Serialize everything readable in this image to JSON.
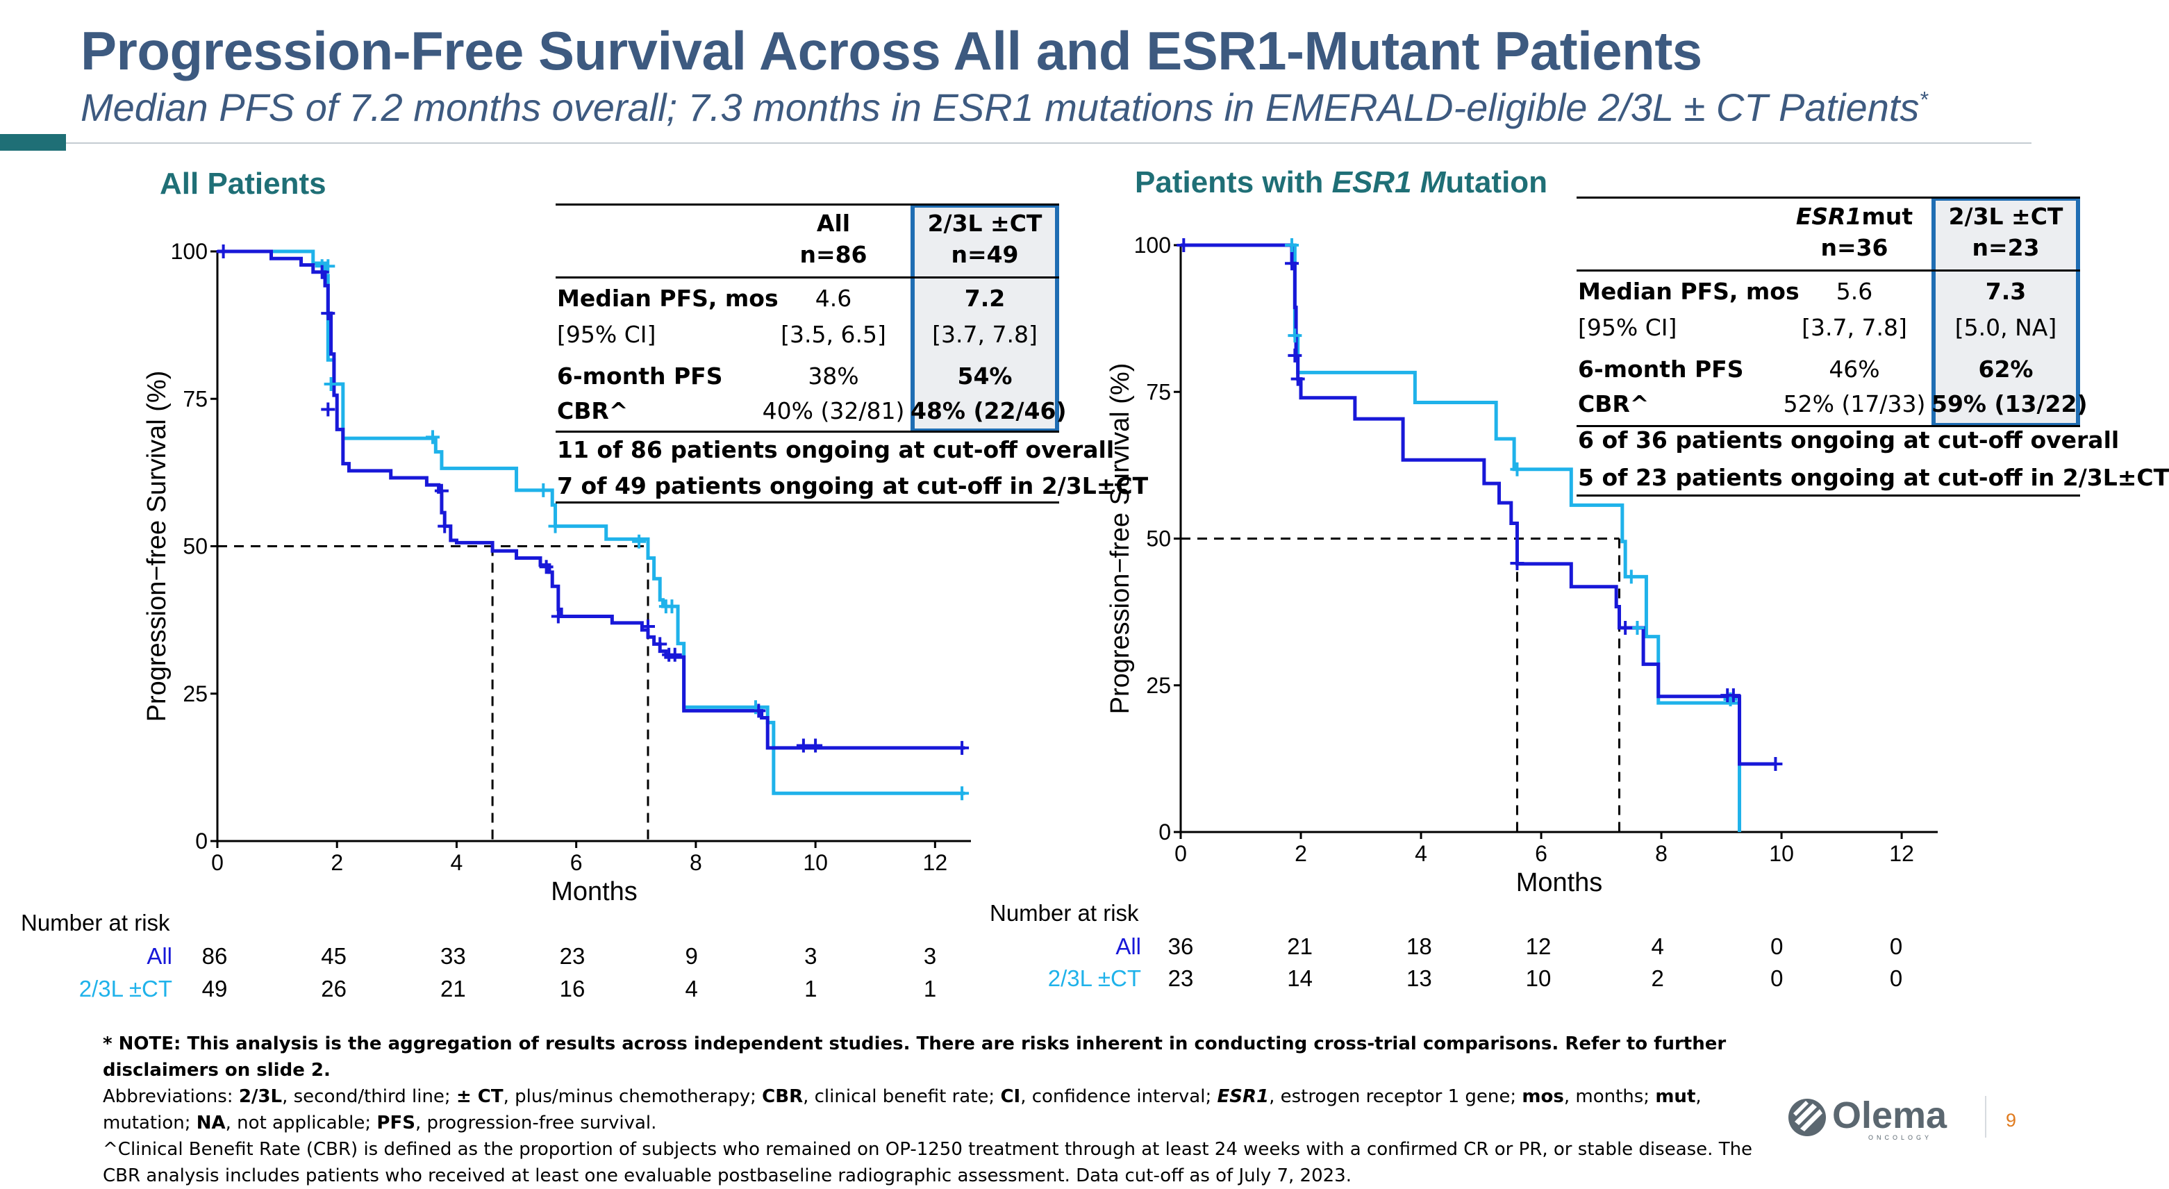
{
  "slide": {
    "title": "Progression-Free Survival Across All and ESR1-Mutant Patients",
    "subtitle": "Median PFS of 7.2 months overall; 7.3 months in ESR1 mutations in EMERALD-eligible 2/3L ± CT Patients",
    "subtitle_mark": "*",
    "page_number": "9",
    "logo_text": "Olema",
    "logo_subtext": "ONCOLOGY"
  },
  "colors": {
    "title": "#3d5a80",
    "accent": "#1f6f76",
    "all_line": "#1818d8",
    "ct_line": "#1fb2ea",
    "highlight_border": "#1f6db3"
  },
  "left_panel": {
    "section_title": "All Patients",
    "table": {
      "headers": [
        {
          "top": "All",
          "bottom": "n=86"
        },
        {
          "top": "2/3L ±CT",
          "bottom": "n=49"
        }
      ],
      "rows": [
        {
          "label": "Median PFS, mos",
          "v1": "4.6",
          "v2": "7.2",
          "bold": true
        },
        {
          "label": "[95% CI]",
          "v1": "[3.5, 6.5]",
          "v2": "[3.7, 7.8]",
          "bold": false
        },
        {
          "label": "6-month PFS",
          "v1": "38%",
          "v2": "54%",
          "bold": true
        },
        {
          "label": "CBR^",
          "v1": "40% (32/81)",
          "v2": "48% (22/46)",
          "bold": true
        }
      ],
      "notes": [
        "11 of 86 patients ongoing at cut-off overall",
        "7 of 49 patients ongoing at cut-off in 2/3L±CT"
      ]
    },
    "risk": {
      "title": "Number at risk",
      "rows": [
        {
          "label": "All",
          "color": "#1818d8",
          "values": [
            "86",
            "45",
            "33",
            "23",
            "9",
            "3",
            "3"
          ]
        },
        {
          "label": "2/3L ±CT",
          "color": "#1fb2ea",
          "values": [
            "49",
            "26",
            "21",
            "16",
            "4",
            "1",
            "1"
          ]
        }
      ]
    }
  },
  "right_panel": {
    "section_title_parts": [
      "Patients with ",
      "ESR1 M",
      "utation"
    ],
    "table": {
      "headers": [
        {
          "top": "ESR1",
          "top_rest": "mut",
          "bottom": "n=36"
        },
        {
          "top": "2/3L ±CT",
          "bottom": "n=23"
        }
      ],
      "rows": [
        {
          "label": "Median PFS, mos",
          "v1": "5.6",
          "v2": "7.3",
          "bold": true
        },
        {
          "label": "[95% CI]",
          "v1": "[3.7, 7.8]",
          "v2": "[5.0, NA]",
          "bold": false
        },
        {
          "label": "6-month PFS",
          "v1": "46%",
          "v2": "62%",
          "bold": true
        },
        {
          "label": "CBR^",
          "v1": "52% (17/33)",
          "v2": "59% (13/22)",
          "bold": true
        }
      ],
      "notes": [
        "6 of 36 patients ongoing at cut-off overall",
        "5 of 23 patients ongoing at cut-off in 2/3L±CT"
      ]
    },
    "risk": {
      "title": "Number at risk",
      "rows": [
        {
          "label": "All",
          "color": "#1818d8",
          "values": [
            "36",
            "21",
            "18",
            "12",
            "4",
            "0",
            "0"
          ]
        },
        {
          "label": "2/3L ±CT",
          "color": "#1fb2ea",
          "values": [
            "23",
            "14",
            "13",
            "10",
            "2",
            "0",
            "0"
          ]
        }
      ]
    }
  },
  "chart_data": [
    {
      "type": "line",
      "subtype": "kaplan-meier step",
      "title": "All Patients",
      "xlabel": "Months",
      "ylabel": "Progression−free Survival (%)",
      "xlim": [
        0,
        12.6
      ],
      "ylim": [
        0,
        100
      ],
      "xticks": [
        0,
        2,
        4,
        6,
        8,
        10,
        12
      ],
      "yticks": [
        0,
        25,
        50,
        75,
        100
      ],
      "grid": false,
      "medians": [
        4.6,
        7.2
      ],
      "reference_y": 50,
      "series": [
        {
          "name": "All",
          "color": "#1818d8",
          "steps": [
            [
              0,
              100
            ],
            [
              0.9,
              98.8
            ],
            [
              1.4,
              97.7
            ],
            [
              1.6,
              96.5
            ],
            [
              1.8,
              94.2
            ],
            [
              1.85,
              89.5
            ],
            [
              1.9,
              82.6
            ],
            [
              1.95,
              75.6
            ],
            [
              2.0,
              69.8
            ],
            [
              2.1,
              64
            ],
            [
              2.2,
              62.8
            ],
            [
              2.9,
              61.6
            ],
            [
              3.5,
              60.4
            ],
            [
              3.7,
              59.2
            ],
            [
              3.75,
              55.7
            ],
            [
              3.8,
              53.4
            ],
            [
              3.9,
              51
            ],
            [
              4.0,
              50.6
            ],
            [
              4.6,
              49.2
            ],
            [
              5.0,
              48
            ],
            [
              5.4,
              46.8
            ],
            [
              5.55,
              45.6
            ],
            [
              5.6,
              43.2
            ],
            [
              5.7,
              39.3
            ],
            [
              5.75,
              38.1
            ],
            [
              6.6,
              37
            ],
            [
              7.1,
              35.8
            ],
            [
              7.2,
              34.6
            ],
            [
              7.3,
              33.4
            ],
            [
              7.4,
              32.2
            ],
            [
              7.5,
              31.2
            ],
            [
              7.8,
              22.1
            ],
            [
              8.8,
              22.1
            ],
            [
              9.1,
              20.9
            ],
            [
              9.2,
              15.8
            ],
            [
              12.5,
              15.8
            ]
          ],
          "censors": [
            [
              0.1,
              100
            ],
            [
              1.75,
              96.5
            ],
            [
              1.85,
              89.5
            ],
            [
              1.85,
              73.2
            ],
            [
              3.75,
              59.4
            ],
            [
              3.8,
              53.4
            ],
            [
              5.5,
              46.5
            ],
            [
              5.7,
              38.1
            ],
            [
              7.2,
              36.4
            ],
            [
              7.4,
              33.4
            ],
            [
              7.55,
              31.6
            ],
            [
              7.65,
              31.6
            ],
            [
              9.05,
              22.1
            ],
            [
              9.8,
              16.2
            ],
            [
              10,
              16.2
            ],
            [
              12.45,
              15.8
            ]
          ]
        },
        {
          "name": "2/3L ±CT",
          "color": "#1fb2ea",
          "steps": [
            [
              0,
              100
            ],
            [
              1.4,
              100
            ],
            [
              1.6,
              98
            ],
            [
              1.8,
              95.9
            ],
            [
              1.85,
              81.6
            ],
            [
              1.95,
              77.5
            ],
            [
              2.1,
              68.3
            ],
            [
              3.6,
              68.3
            ],
            [
              3.65,
              66
            ],
            [
              3.75,
              63.2
            ],
            [
              5.0,
              63.2
            ],
            [
              5.0,
              59.5
            ],
            [
              5.5,
              59.5
            ],
            [
              5.6,
              57
            ],
            [
              5.65,
              53.4
            ],
            [
              6.5,
              53.4
            ],
            [
              6.5,
              51.2
            ],
            [
              7.1,
              51.2
            ],
            [
              7.2,
              48
            ],
            [
              7.3,
              44.5
            ],
            [
              7.4,
              40.9
            ],
            [
              7.45,
              39.8
            ],
            [
              7.6,
              39.8
            ],
            [
              7.7,
              33.5
            ],
            [
              7.8,
              22.7
            ],
            [
              9.1,
              22.7
            ],
            [
              9.2,
              20.1
            ],
            [
              9.3,
              8.1
            ],
            [
              12.5,
              8.1
            ]
          ],
          "censors": [
            [
              1.75,
              97.5
            ],
            [
              1.85,
              97.5
            ],
            [
              1.9,
              77.5
            ],
            [
              3.6,
              68.5
            ],
            [
              5.45,
              59.5
            ],
            [
              5.65,
              53.4
            ],
            [
              7.05,
              50.8
            ],
            [
              7.5,
              39.8
            ],
            [
              7.6,
              39.8
            ],
            [
              9.0,
              22.7
            ],
            [
              12.45,
              8.1
            ]
          ]
        }
      ]
    },
    {
      "type": "line",
      "subtype": "kaplan-meier step",
      "title": "Patients with ESR1 Mutation",
      "xlabel": "Months",
      "ylabel": "Progression−free Survival (%)",
      "xlim": [
        0,
        12.6
      ],
      "ylim": [
        0,
        100
      ],
      "xticks": [
        0,
        2,
        4,
        6,
        8,
        10,
        12
      ],
      "yticks": [
        0,
        25,
        50,
        75,
        100
      ],
      "grid": false,
      "medians": [
        5.6,
        7.3
      ],
      "reference_y": 50,
      "series": [
        {
          "name": "All",
          "color": "#1818d8",
          "steps": [
            [
              0,
              100
            ],
            [
              1.8,
              100
            ],
            [
              1.85,
              96.9
            ],
            [
              1.9,
              89.4
            ],
            [
              1.92,
              80.7
            ],
            [
              1.95,
              77.2
            ],
            [
              2.0,
              74
            ],
            [
              2.9,
              74
            ],
            [
              2.9,
              70.4
            ],
            [
              3.7,
              70.4
            ],
            [
              3.7,
              63.4
            ],
            [
              5.0,
              63.4
            ],
            [
              5.05,
              59.4
            ],
            [
              5.25,
              59.4
            ],
            [
              5.3,
              56.1
            ],
            [
              5.5,
              56.1
            ],
            [
              5.5,
              52.6
            ],
            [
              5.6,
              45.7
            ],
            [
              6.5,
              45.7
            ],
            [
              6.5,
              41.8
            ],
            [
              7.2,
              41.8
            ],
            [
              7.25,
              38.4
            ],
            [
              7.3,
              34.8
            ],
            [
              7.65,
              34.8
            ],
            [
              7.7,
              28.6
            ],
            [
              7.9,
              28.6
            ],
            [
              7.95,
              23.1
            ],
            [
              9.3,
              23.1
            ],
            [
              9.3,
              11.6
            ],
            [
              9.9,
              11.6
            ]
          ],
          "censors": [
            [
              0.05,
              100
            ],
            [
              1.85,
              96.9
            ],
            [
              1.9,
              81.2
            ],
            [
              1.95,
              77.2
            ],
            [
              5.6,
              45.8
            ],
            [
              7.4,
              34.8
            ],
            [
              9.1,
              23.3
            ],
            [
              9.2,
              23.3
            ],
            [
              9.9,
              11.6
            ]
          ]
        },
        {
          "name": "2/3L ±CT",
          "color": "#1fb2ea",
          "steps": [
            [
              0,
              100
            ],
            [
              1.85,
              100
            ],
            [
              1.9,
              84.6
            ],
            [
              1.95,
              78.3
            ],
            [
              3.9,
              78.3
            ],
            [
              3.9,
              73.2
            ],
            [
              5.25,
              73.2
            ],
            [
              5.25,
              67
            ],
            [
              5.5,
              67
            ],
            [
              5.55,
              61.8
            ],
            [
              6.5,
              61.8
            ],
            [
              6.5,
              55.7
            ],
            [
              7.3,
              55.7
            ],
            [
              7.35,
              49.5
            ],
            [
              7.4,
              43.5
            ],
            [
              7.7,
              43.5
            ],
            [
              7.75,
              33.3
            ],
            [
              7.9,
              33.3
            ],
            [
              7.95,
              22
            ],
            [
              9.3,
              22
            ],
            [
              9.3,
              0
            ]
          ],
          "censors": [
            [
              1.85,
              100
            ],
            [
              1.9,
              84.6
            ],
            [
              5.6,
              61.8
            ],
            [
              7.5,
              43.5
            ],
            [
              7.6,
              34.8
            ],
            [
              9.15,
              22.6
            ]
          ]
        }
      ]
    }
  ],
  "footer": {
    "note": "* NOTE: This analysis is the aggregation of results across independent studies.  There are risks inherent in conducting cross-trial comparisons. Refer to further disclaimers on slide 2.",
    "abbr_prefix": "Abbreviations: ",
    "abbreviations": [
      {
        "term": "2/3L",
        "def": ", second/third line; "
      },
      {
        "term": "± CT",
        "def": ", plus/minus chemotherapy; "
      },
      {
        "term": "CBR",
        "def": ", clinical benefit rate; "
      },
      {
        "term": "CI",
        "def": ", confidence interval; "
      },
      {
        "term": "ESR1",
        "def": ", estrogen receptor 1 gene; ",
        "italic": true
      },
      {
        "term": "mos",
        "def": ", months; "
      },
      {
        "term": "mut",
        "def": ","
      },
      {
        "term": "",
        "def": "mutation; "
      },
      {
        "term": "NA",
        "def": ", not applicable; "
      },
      {
        "term": "PFS",
        "def": ", progression-free survival."
      }
    ],
    "cbr_line1": "^Clinical Benefit Rate (CBR) is defined as the proportion of subjects who remained on OP-1250 treatment through at least 24 weeks with a confirmed CR or PR, or stable disease.  The",
    "cbr_line2": "CBR analysis includes patients who received at least one evaluable postbaseline radiographic assessment.  Data cut-off as of July 7, 2023."
  }
}
